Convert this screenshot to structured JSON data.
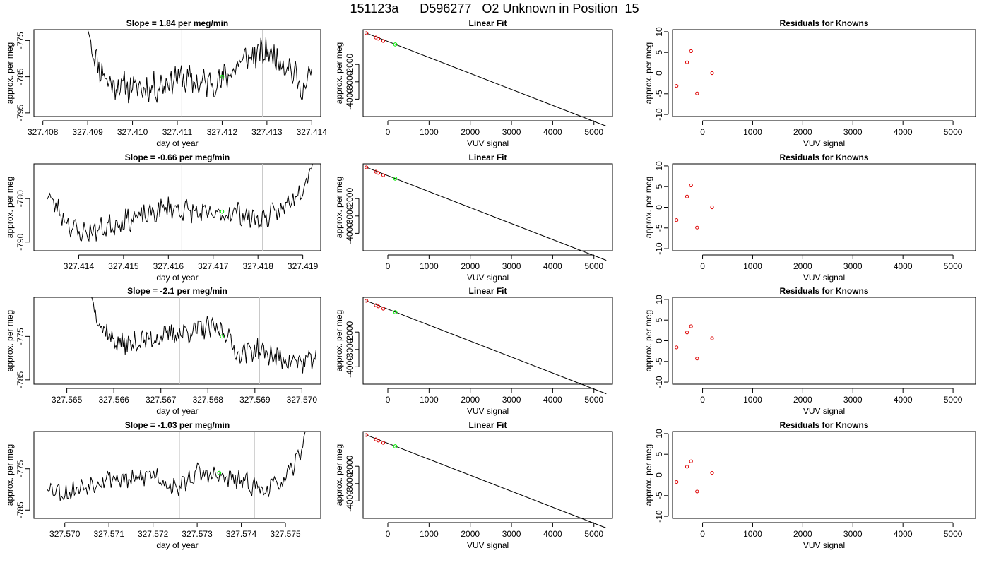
{
  "page_title": "151123a      D596277   O2 Unknown in Position  15",
  "chart_data": [
    {
      "type": "line",
      "panel": "time-series",
      "title": "Slope =  1.84  per meg/min",
      "xlabel": "day of year",
      "ylabel": "approx. per meg",
      "xlim": [
        327.4078,
        327.4142
      ],
      "ylim": [
        -796,
        -772
      ],
      "xticks": [
        "327.408",
        "327.409",
        "327.410",
        "327.411",
        "327.412",
        "327.413",
        "327.414"
      ],
      "xtick_values": [
        327.408,
        327.409,
        327.41,
        327.411,
        327.412,
        327.413,
        327.414
      ],
      "yticks": [
        "-775",
        "-785",
        "-795"
      ],
      "ytick_values": [
        -775,
        -785,
        -795
      ],
      "vlines": [
        327.4111,
        327.4129
      ],
      "point": {
        "x": 327.412,
        "y": -785,
        "color": "#00ee00"
      },
      "noise_seed": 11,
      "series_keys": {
        "x0": 327.409,
        "x1": 327.414,
        "mean": -788.5,
        "trend": 4.5,
        "amp": 4.5,
        "startHigh": true,
        "endHigh": false,
        "rise": 0.1
      },
      "series": [
        {
          "x": [
            327.409,
            327.4092,
            327.4093,
            327.4095,
            327.41,
            327.4105,
            327.411,
            327.4115,
            327.412,
            327.4125,
            327.4128,
            327.413,
            327.4135,
            327.4138,
            327.414
          ],
          "y": [
            -772,
            -781,
            -783,
            -787,
            -788,
            -788,
            -785,
            -787,
            -786,
            -780,
            -779,
            -778,
            -782,
            -789,
            -784
          ]
        }
      ],
      "series_color": "#000000"
    },
    {
      "type": "scatter",
      "panel": "linear-fit",
      "title": "Linear Fit",
      "xlabel": "VUV signal",
      "ylabel": "approx. per meg",
      "xlim": [
        -600,
        5450
      ],
      "ylim": [
        -5000,
        0
      ],
      "xticks": [
        "0",
        "1000",
        "2000",
        "3000",
        "4000",
        "5000"
      ],
      "xtick_values": [
        0,
        1000,
        2000,
        3000,
        4000,
        5000
      ],
      "yticks": [
        "-2000",
        "-3000",
        "-4000"
      ],
      "ytick_values": [
        -2000,
        -3000,
        -4000
      ],
      "knowns": {
        "x": [
          -520,
          -290,
          -230,
          -110
        ],
        "y": [
          -200,
          -450,
          -520,
          -650
        ]
      },
      "unknown": {
        "x": 180,
        "y": -850
      },
      "fit": {
        "x0": -520,
        "x1": 5300,
        "slope": -0.92
      }
    },
    {
      "type": "scatter",
      "panel": "residuals",
      "title": "Residuals for Knowns",
      "xlabel": "VUV signal",
      "ylabel": "approx. per meg",
      "xlim": [
        -600,
        5450
      ],
      "ylim": [
        -10.5,
        10.5
      ],
      "xticks": [
        "0",
        "1000",
        "2000",
        "3000",
        "4000",
        "5000"
      ],
      "xtick_values": [
        0,
        1000,
        2000,
        3000,
        4000,
        5000
      ],
      "yticks": [
        "10",
        "5",
        "0",
        "-5",
        "-10"
      ],
      "ytick_values": [
        10,
        5,
        0,
        -5,
        -10
      ],
      "x": [
        -520,
        -310,
        -230,
        -110,
        190
      ],
      "y": [
        -3.1,
        2.6,
        5.3,
        -4.9,
        0.0
      ]
    },
    {
      "type": "line",
      "panel": "time-series",
      "title": "Slope =  -0.66  per meg/min",
      "xlabel": "day of year",
      "ylabel": "approx. per meg",
      "xlim": [
        327.413,
        327.4194
      ],
      "ylim": [
        -792,
        -772
      ],
      "xticks": [
        "327.414",
        "327.415",
        "327.416",
        "327.417",
        "327.418",
        "327.419"
      ],
      "xtick_values": [
        327.414,
        327.415,
        327.416,
        327.417,
        327.418,
        327.419
      ],
      "yticks": [
        "-780",
        "-790"
      ],
      "ytick_values": [
        -780,
        -790
      ],
      "vlines": [
        327.4163,
        327.4181
      ],
      "point": {
        "x": 327.4172,
        "y": -783,
        "color": "#00ee00"
      },
      "noise_seed": 23,
      "series_keys": {
        "x0": 327.4133,
        "x1": 327.4193,
        "mean": -785.5,
        "trend": 1.0,
        "amp": 2.8,
        "startHigh": false,
        "endHigh": true,
        "rise": 0.07
      },
      "series": [
        {
          "x": [
            327.4133,
            327.4135,
            327.4138,
            327.414,
            327.4145,
            327.415,
            327.4155,
            327.416,
            327.4165,
            327.417,
            327.4175,
            327.418,
            327.4185,
            327.419,
            327.4193
          ],
          "y": [
            -779,
            -782,
            -786,
            -788,
            -787,
            -785,
            -784,
            -782,
            -783,
            -784,
            -783,
            -785,
            -783,
            -777,
            -770
          ]
        }
      ],
      "series_color": "#000000"
    },
    {
      "type": "scatter",
      "panel": "linear-fit",
      "title": "Linear Fit",
      "xlabel": "VUV signal",
      "ylabel": "approx. per meg",
      "xlim": [
        -600,
        5450
      ],
      "ylim": [
        -5000,
        0
      ],
      "xticks": [
        "0",
        "1000",
        "2000",
        "3000",
        "4000",
        "5000"
      ],
      "xtick_values": [
        0,
        1000,
        2000,
        3000,
        4000,
        5000
      ],
      "yticks": [
        "-2000",
        "-3000",
        "-4000"
      ],
      "ytick_values": [
        -2000,
        -3000,
        -4000
      ],
      "knowns": {
        "x": [
          -520,
          -290,
          -230,
          -110
        ],
        "y": [
          -200,
          -450,
          -520,
          -650
        ]
      },
      "unknown": {
        "x": 180,
        "y": -850
      },
      "fit": {
        "x0": -520,
        "x1": 5300,
        "slope": -0.92
      }
    },
    {
      "type": "scatter",
      "panel": "residuals",
      "title": "Residuals for Knowns",
      "xlabel": "VUV signal",
      "ylabel": "approx. per meg",
      "xlim": [
        -600,
        5450
      ],
      "ylim": [
        -10.5,
        10.5
      ],
      "xticks": [
        "0",
        "1000",
        "2000",
        "3000",
        "4000",
        "5000"
      ],
      "xtick_values": [
        0,
        1000,
        2000,
        3000,
        4000,
        5000
      ],
      "yticks": [
        "10",
        "5",
        "0",
        "-5",
        "-10"
      ],
      "ytick_values": [
        10,
        5,
        0,
        -5,
        -10
      ],
      "x": [
        -520,
        -310,
        -230,
        -110,
        190
      ],
      "y": [
        -3.1,
        2.6,
        5.3,
        -4.9,
        0.0
      ]
    },
    {
      "type": "line",
      "panel": "time-series",
      "title": "Slope =  -2.1  per meg/min",
      "xlabel": "day of year",
      "ylabel": "approx. per meg",
      "xlim": [
        327.5643,
        327.5704
      ],
      "ylim": [
        -786,
        -766
      ],
      "xticks": [
        "327.565",
        "327.566",
        "327.567",
        "327.568",
        "327.569",
        "327.570"
      ],
      "xtick_values": [
        327.565,
        327.566,
        327.567,
        327.568,
        327.569,
        327.57
      ],
      "yticks": [
        "-775",
        "-785"
      ],
      "ytick_values": [
        -775,
        -785
      ],
      "vlines": [
        327.5674,
        327.5691
      ],
      "point": {
        "x": 327.5683,
        "y": -775,
        "color": "#00ee00"
      },
      "noise_seed": 37,
      "series_keys": {
        "x0": 327.5655,
        "x1": 327.5703,
        "mean": -777,
        "trend": 5.0,
        "amp": 2.8,
        "startHigh": true,
        "endHigh": false,
        "rise": 0.1
      },
      "series": [
        {
          "x": [
            327.5655,
            327.5657,
            327.566,
            327.5663,
            327.5666,
            327.567,
            327.5675,
            327.568,
            327.5684,
            327.5686,
            327.569,
            327.5695,
            327.57,
            327.5703
          ],
          "y": [
            -765,
            -772,
            -776,
            -777,
            -776,
            -775,
            -774,
            -773,
            -774,
            -779,
            -778,
            -780,
            -781,
            -780
          ]
        }
      ],
      "series_color": "#000000"
    },
    {
      "type": "scatter",
      "panel": "linear-fit",
      "title": "Linear Fit",
      "xlabel": "VUV signal",
      "ylabel": "approx. per meg",
      "xlim": [
        -600,
        5450
      ],
      "ylim": [
        -5000,
        0
      ],
      "xticks": [
        "0",
        "1000",
        "2000",
        "3000",
        "4000",
        "5000"
      ],
      "xtick_values": [
        0,
        1000,
        2000,
        3000,
        4000,
        5000
      ],
      "yticks": [
        "-2000",
        "-3000",
        "-4000"
      ],
      "ytick_values": [
        -2000,
        -3000,
        -4000
      ],
      "knowns": {
        "x": [
          -520,
          -290,
          -230,
          -110
        ],
        "y": [
          -200,
          -450,
          -520,
          -650
        ]
      },
      "unknown": {
        "x": 180,
        "y": -850
      },
      "fit": {
        "x0": -520,
        "x1": 5300,
        "slope": -0.92
      }
    },
    {
      "type": "scatter",
      "panel": "residuals",
      "title": "Residuals for Knowns",
      "xlabel": "VUV signal",
      "ylabel": "approx. per meg",
      "xlim": [
        -600,
        5450
      ],
      "ylim": [
        -10.5,
        10.5
      ],
      "xticks": [
        "0",
        "1000",
        "2000",
        "3000",
        "4000",
        "5000"
      ],
      "xtick_values": [
        0,
        1000,
        2000,
        3000,
        4000,
        5000
      ],
      "yticks": [
        "10",
        "5",
        "0",
        "-5",
        "-10"
      ],
      "ytick_values": [
        10,
        5,
        0,
        -5,
        -10
      ],
      "x": [
        -520,
        -310,
        -230,
        -110,
        190
      ],
      "y": [
        -1.6,
        2.0,
        3.5,
        -4.3,
        0.6
      ]
    },
    {
      "type": "line",
      "panel": "time-series",
      "title": "Slope =  -1.03  per meg/min",
      "xlabel": "day of year",
      "ylabel": "approx. per meg",
      "xlim": [
        327.5693,
        327.5758
      ],
      "ylim": [
        -787,
        -766
      ],
      "xticks": [
        "327.570",
        "327.571",
        "327.572",
        "327.573",
        "327.574",
        "327.575"
      ],
      "xtick_values": [
        327.57,
        327.571,
        327.572,
        327.573,
        327.574,
        327.575
      ],
      "yticks": [
        "-775",
        "-785"
      ],
      "ytick_values": [
        -775,
        -785
      ],
      "vlines": [
        327.5726,
        327.5743
      ],
      "point": {
        "x": 327.5735,
        "y": -776,
        "color": "#00ee00"
      },
      "noise_seed": 53,
      "series_keys": {
        "x0": 327.5696,
        "x1": 327.5755,
        "mean": -778.5,
        "trend": 0.5,
        "amp": 2.6,
        "startHigh": false,
        "endHigh": true,
        "rise": 0.06
      },
      "series": [
        {
          "x": [
            327.5696,
            327.57,
            327.5705,
            327.571,
            327.5715,
            327.572,
            327.5725,
            327.573,
            327.5735,
            327.574,
            327.5745,
            327.575,
            327.5753,
            327.5755
          ],
          "y": [
            -779,
            -781,
            -779,
            -777,
            -778,
            -776,
            -780,
            -776,
            -777,
            -778,
            -780,
            -778,
            -772,
            -764
          ]
        }
      ],
      "series_color": "#000000"
    },
    {
      "type": "scatter",
      "panel": "linear-fit",
      "title": "Linear Fit",
      "xlabel": "VUV signal",
      "ylabel": "approx. per meg",
      "xlim": [
        -600,
        5450
      ],
      "ylim": [
        -5000,
        0
      ],
      "xticks": [
        "0",
        "1000",
        "2000",
        "3000",
        "4000",
        "5000"
      ],
      "xtick_values": [
        0,
        1000,
        2000,
        3000,
        4000,
        5000
      ],
      "yticks": [
        "-2000",
        "-3000",
        "-4000"
      ],
      "ytick_values": [
        -2000,
        -3000,
        -4000
      ],
      "knowns": {
        "x": [
          -520,
          -290,
          -230,
          -110
        ],
        "y": [
          -200,
          -450,
          -520,
          -650
        ]
      },
      "unknown": {
        "x": 180,
        "y": -850
      },
      "fit": {
        "x0": -520,
        "x1": 5300,
        "slope": -0.92
      }
    },
    {
      "type": "scatter",
      "panel": "residuals",
      "title": "Residuals for Knowns",
      "xlabel": "VUV signal",
      "ylabel": "approx. per meg",
      "xlim": [
        -600,
        5450
      ],
      "ylim": [
        -10.5,
        10.5
      ],
      "xticks": [
        "0",
        "1000",
        "2000",
        "3000",
        "4000",
        "5000"
      ],
      "xtick_values": [
        0,
        1000,
        2000,
        3000,
        4000,
        5000
      ],
      "yticks": [
        "10",
        "5",
        "0",
        "-5",
        "-10"
      ],
      "ytick_values": [
        10,
        5,
        0,
        -5,
        -10
      ],
      "x": [
        -520,
        -310,
        -230,
        -110,
        190
      ],
      "y": [
        -1.7,
        2.0,
        3.3,
        -4.0,
        0.5
      ]
    }
  ],
  "colors": {
    "known_points": "#dd0000",
    "unknown_point": "#00ee00",
    "fit_line": "#000000",
    "vlines": "#c8c8c8"
  }
}
